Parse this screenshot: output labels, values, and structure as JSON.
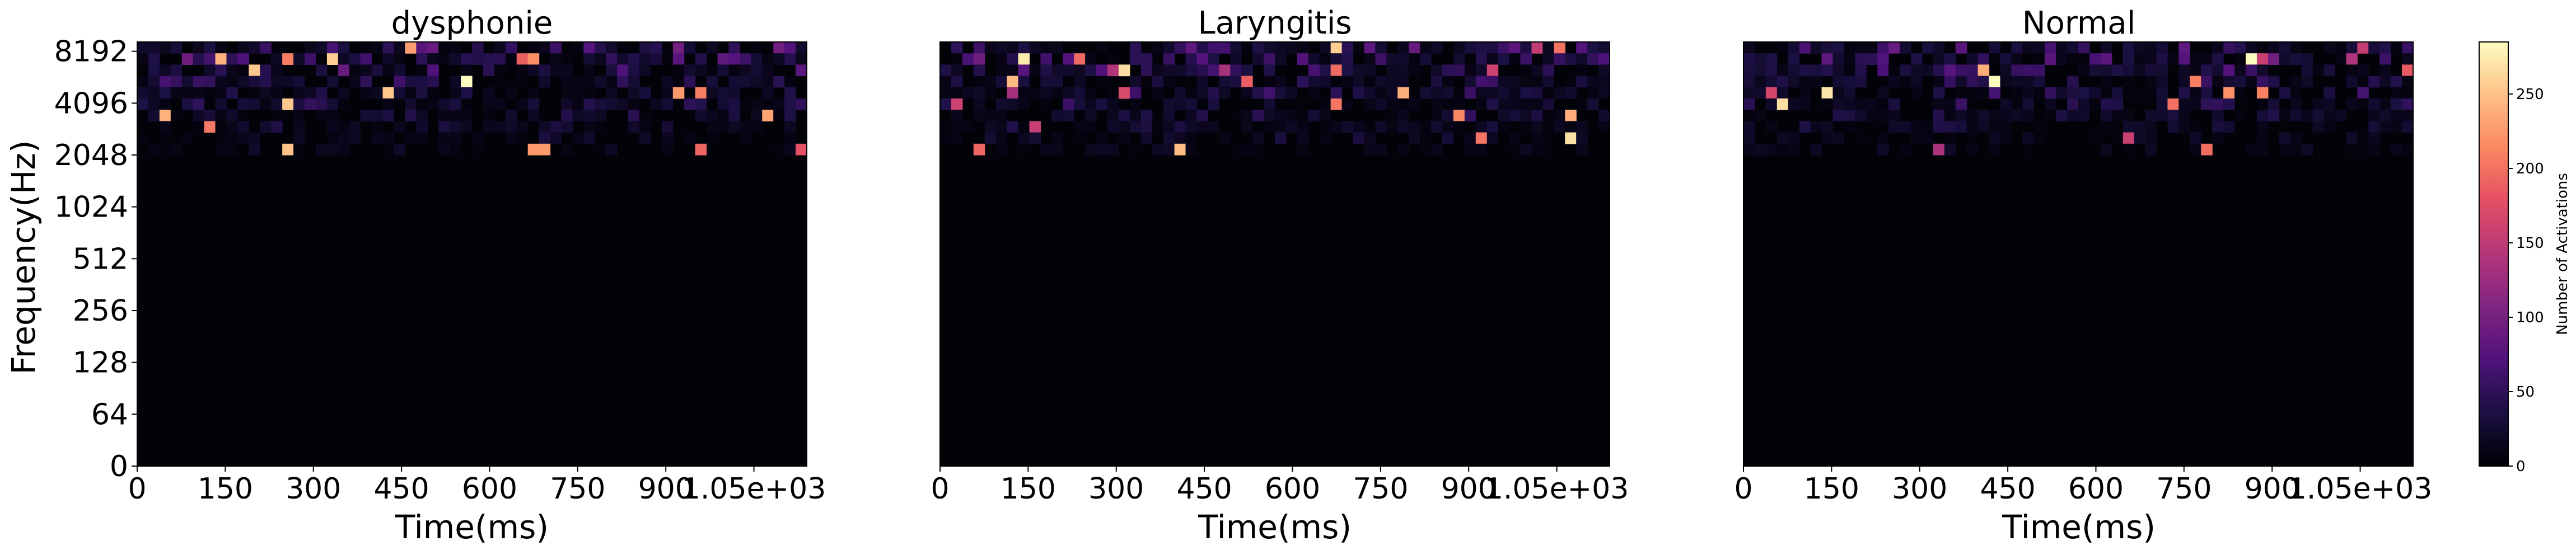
{
  "chart_data": {
    "type": "heatmap",
    "panels": [
      {
        "title": "dysphonie",
        "xlabel": "Time(ms)",
        "ylabel": "Frequency(Hz)"
      },
      {
        "title": "Laryngitis",
        "xlabel": "Time(ms)",
        "ylabel": ""
      },
      {
        "title": "Normal",
        "xlabel": "Time(ms)",
        "ylabel": ""
      }
    ],
    "x_ticks": [
      "0",
      "150",
      "300",
      "450",
      "600",
      "750",
      "900",
      "1.05e+03"
    ],
    "x_tick_values": [
      0,
      150,
      300,
      450,
      600,
      750,
      900,
      1050
    ],
    "xlim": [
      0,
      1140
    ],
    "y_ticks": [
      "0",
      "64",
      "128",
      "256",
      "512",
      "1024",
      "2048",
      "4096",
      "8192"
    ],
    "y_tick_values": [
      0,
      64,
      128,
      256,
      512,
      1024,
      2048,
      4096,
      8192
    ],
    "frequency_scale": "log2",
    "time_bins": 60,
    "frequency_bins": 40,
    "colormap": "magma",
    "colorbar": {
      "label": "Number of Activations",
      "ticks": [
        "0",
        "50",
        "100",
        "150",
        "200",
        "250"
      ],
      "tick_values": [
        0,
        50,
        100,
        150,
        200,
        250
      ],
      "range": [
        0,
        285
      ]
    },
    "activations_region": "Most activations occur between roughly 2048 Hz and 8192 Hz; lower frequencies are near zero.",
    "seeds": [
      17,
      53,
      91
    ]
  }
}
